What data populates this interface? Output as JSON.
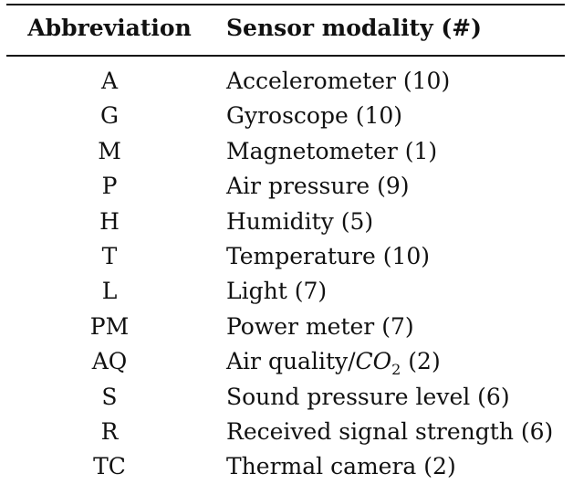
{
  "table": {
    "headers": {
      "abbreviation": "Abbreviation",
      "modality": "Sensor modality (#)"
    },
    "rows": [
      {
        "abbr": "A",
        "modality": "Accelerometer (10)"
      },
      {
        "abbr": "G",
        "modality": "Gyroscope (10)"
      },
      {
        "abbr": "M",
        "modality": "Magnetometer (1)"
      },
      {
        "abbr": "P",
        "modality": "Air pressure (9)"
      },
      {
        "abbr": "H",
        "modality": "Humidity (5)"
      },
      {
        "abbr": "T",
        "modality": "Temperature (10)"
      },
      {
        "abbr": "L",
        "modality": "Light (7)"
      },
      {
        "abbr": "PM",
        "modality": "Power meter (7)"
      },
      {
        "abbr": "AQ",
        "modality_prefix": "Air quality/",
        "modality_co": "CO",
        "modality_sub": "2",
        "modality_suffix": " (2)"
      },
      {
        "abbr": "S",
        "modality": "Sound pressure level (6)"
      },
      {
        "abbr": "R",
        "modality": "Received signal strength (6)"
      },
      {
        "abbr": "TC",
        "modality": "Thermal camera (2)"
      }
    ]
  }
}
